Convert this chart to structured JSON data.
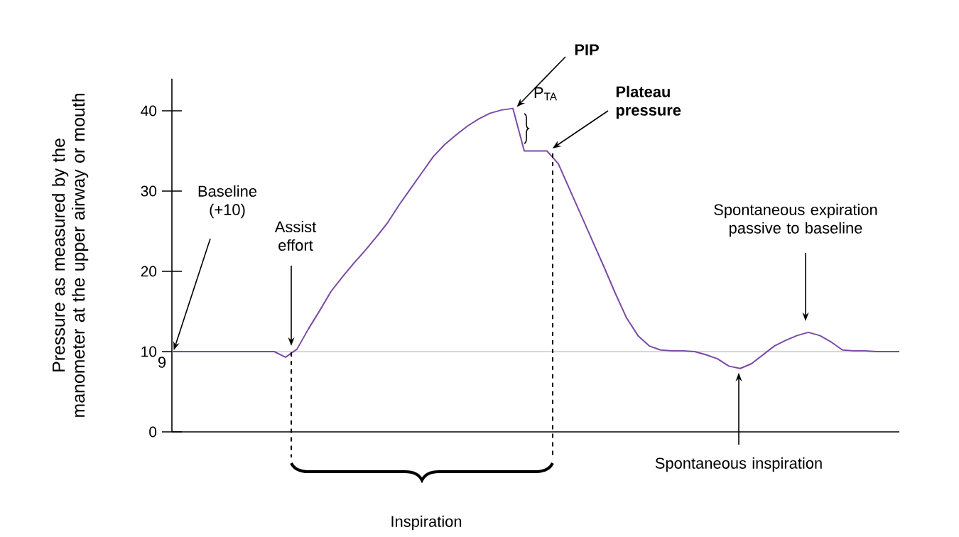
{
  "chart_data": {
    "type": "line",
    "ylabel": "Pressure as measured by the manometer at the upper airway or mouth",
    "categories": [
      null,
      null,
      null,
      null,
      null,
      null,
      null,
      null,
      null,
      null,
      null,
      null,
      null,
      null,
      null,
      null,
      null,
      null,
      null,
      null,
      null,
      null,
      null,
      null,
      null,
      null,
      null,
      null,
      null,
      null,
      null,
      null,
      null,
      null,
      null,
      null,
      null,
      null,
      null,
      null,
      null,
      null,
      null,
      null,
      null,
      null,
      null,
      null,
      null,
      null,
      null,
      null,
      null,
      null,
      null,
      null,
      null,
      null,
      null,
      null,
      null,
      null,
      null,
      null,
      null
    ],
    "ylim": [
      0,
      44
    ],
    "yticks": [
      0,
      10,
      20,
      30,
      40
    ],
    "marker": "none",
    "line_style": "solid",
    "series": [
      {
        "color": "#7b4aa5",
        "values": [
          10,
          10,
          10,
          10,
          10,
          10,
          10,
          10,
          10,
          10,
          9.3,
          10.3,
          12.8,
          15.1,
          17.5,
          19.3,
          21,
          22.6,
          24.3,
          26.1,
          28.3,
          30.3,
          32.3,
          34.3,
          35.8,
          37,
          38.1,
          39,
          39.7,
          40.1,
          40.3,
          35,
          35,
          35,
          33.4,
          30.2,
          27,
          23.8,
          20.6,
          17.3,
          14.2,
          12,
          10.7,
          10.2,
          10.1,
          10.1,
          10,
          9.6,
          9.1,
          8.2,
          7.9,
          8.5,
          9.6,
          10.7,
          11.4,
          12,
          12.4,
          12,
          11.2,
          10.2,
          10.1,
          10.1,
          10,
          10,
          10
        ]
      }
    ],
    "ref_lines": [
      {
        "axis": "y",
        "value": 10,
        "color": "#999999"
      }
    ],
    "annotations": [
      "Baseline (+10)",
      {
        "text": "Assist effort",
        "y": 10
      },
      "PIP",
      "P$_{TA}$",
      "Plateau pressure",
      "Spontaneous expiration passive to baseline",
      {
        "text": "Spontaneous inspiration",
        "y": 7.9
      },
      "Inspiration",
      "9"
    ]
  }
}
